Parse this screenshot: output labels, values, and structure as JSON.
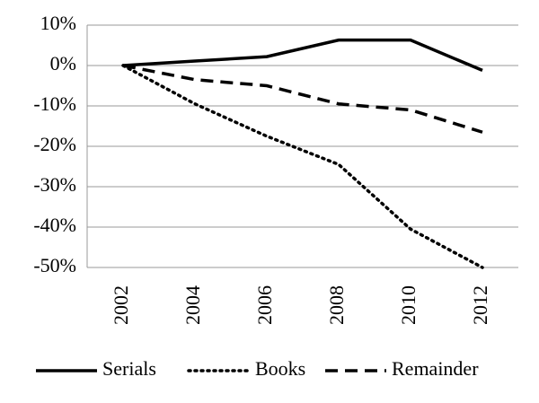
{
  "chart_data": {
    "type": "line",
    "categories": [
      "2002",
      "2004",
      "2006",
      "2008",
      "2010",
      "2012"
    ],
    "series": [
      {
        "name": "Serials",
        "color": "#000000",
        "linestyle": "solid",
        "values": [
          0,
          1.1,
          2.2,
          6.3,
          6.3,
          -1.2
        ]
      },
      {
        "name": "Books",
        "color": "#000000",
        "linestyle": "dotted",
        "values": [
          0,
          -9.5,
          -17.5,
          -24.5,
          -40.5,
          -50
        ]
      },
      {
        "name": "Remainder",
        "color": "#000000",
        "linestyle": "dashed",
        "values": [
          0,
          -3.5,
          -5,
          -9.5,
          -11,
          -16.5
        ]
      }
    ],
    "ylim": [
      -50,
      10
    ],
    "yticks": [
      {
        "value": 10,
        "label": "10%"
      },
      {
        "value": 0,
        "label": "0%"
      },
      {
        "value": -10,
        "label": "-10%"
      },
      {
        "value": -20,
        "label": "-20%"
      },
      {
        "value": -30,
        "label": "-30%"
      },
      {
        "value": -40,
        "label": "-40%"
      },
      {
        "value": -50,
        "label": "-50%"
      }
    ],
    "grid": true,
    "legend": "bottom"
  }
}
